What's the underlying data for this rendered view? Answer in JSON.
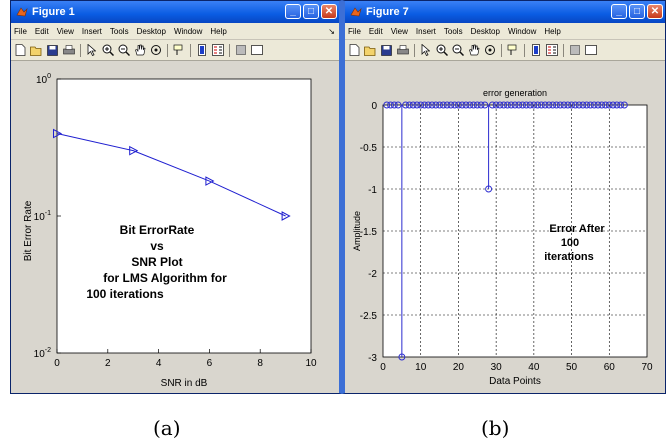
{
  "window1": {
    "title": "Figure 1",
    "menu": [
      "File",
      "Edit",
      "View",
      "Insert",
      "Tools",
      "Desktop",
      "Window",
      "Help"
    ],
    "chart_data": {
      "type": "line",
      "x": [
        0,
        3,
        6,
        9
      ],
      "y": [
        0.4,
        0.3,
        0.18,
        0.1
      ],
      "xlabel": "SNR in dB",
      "ylabel": "Bit Error Rate",
      "xlim": [
        0,
        10
      ],
      "ylim": [
        0.01,
        1
      ],
      "yscale": "log",
      "grid": false,
      "marker": "triangle-right",
      "line_color": "#1f1fd0",
      "x_ticks": [
        "0",
        "2",
        "4",
        "6",
        "8",
        "10"
      ],
      "y_ticks": [
        {
          "base": "10",
          "exp": "0"
        },
        {
          "base": "10",
          "exp": "-1"
        },
        {
          "base": "10",
          "exp": "-2"
        }
      ],
      "annotation": [
        "Bit ErrorRate",
        "vs",
        "SNR Plot",
        "for LMS Algorithm for",
        "100 iterations"
      ]
    }
  },
  "window2": {
    "title": "Figure 7",
    "menu": [
      "File",
      "Edit",
      "View",
      "Insert",
      "Tools",
      "Desktop",
      "Window",
      "Help"
    ],
    "chart_data": {
      "type": "scatter",
      "subtype": "stem",
      "title": "error generation",
      "xlabel": "Data Points",
      "ylabel": "Amplitude",
      "xlim": [
        0,
        70
      ],
      "ylim": [
        -3,
        0
      ],
      "grid": true,
      "marker_color": "#2b2bd0",
      "x": [
        1,
        2,
        3,
        4,
        5,
        6,
        7,
        8,
        9,
        10,
        11,
        12,
        13,
        14,
        15,
        16,
        17,
        18,
        19,
        20,
        21,
        22,
        23,
        24,
        25,
        26,
        27,
        28,
        29,
        30,
        31,
        32,
        33,
        34,
        35,
        36,
        37,
        38,
        39,
        40,
        41,
        42,
        43,
        44,
        45,
        46,
        47,
        48,
        49,
        50,
        51,
        52,
        53,
        54,
        55,
        56,
        57,
        58,
        59,
        60,
        61,
        62,
        63,
        64
      ],
      "y": [
        0,
        0,
        0,
        0,
        -3,
        0,
        0,
        0,
        0,
        0,
        0,
        0,
        0,
        0,
        0,
        0,
        0,
        0,
        0,
        0,
        0,
        0,
        0,
        0,
        0,
        0,
        0,
        -1,
        0,
        0,
        0,
        0,
        0,
        0,
        0,
        0,
        0,
        0,
        0,
        0,
        0,
        0,
        0,
        0,
        0,
        0,
        0,
        0,
        0,
        0,
        0,
        0,
        0,
        0,
        0,
        0,
        0,
        0,
        0,
        0,
        0,
        0,
        0,
        0
      ],
      "x_ticks": [
        "0",
        "10",
        "20",
        "30",
        "40",
        "50",
        "60",
        "70"
      ],
      "y_ticks": [
        "0",
        "-0.5",
        "-1",
        "-1.5",
        "-2",
        "-2.5",
        "-3"
      ],
      "annotation": [
        "Error After",
        "100",
        "iterations"
      ]
    }
  },
  "captions": [
    "(a)",
    "(b)"
  ]
}
